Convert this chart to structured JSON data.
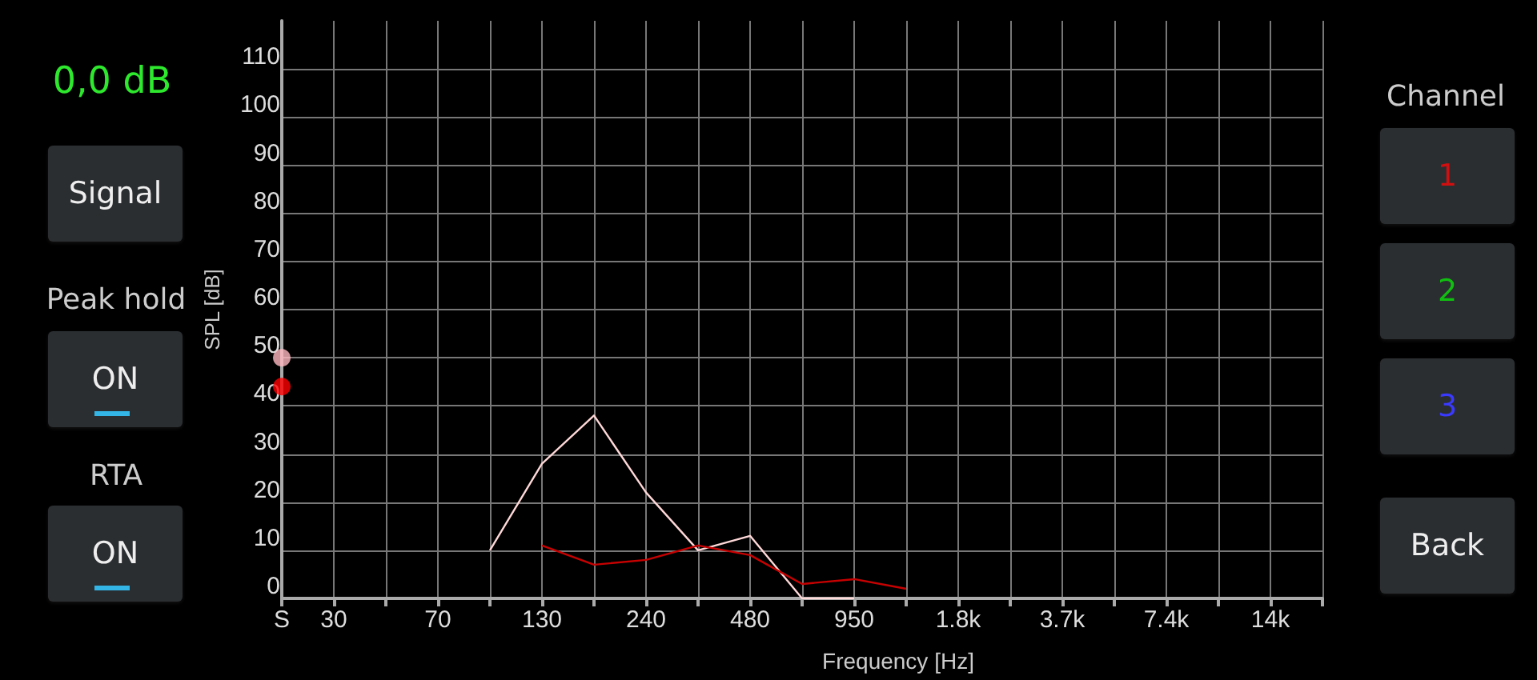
{
  "chart_data": {
    "type": "line",
    "xlabel": "Frequency [Hz]",
    "ylabel": "SPL [dB]",
    "categories": [
      "S",
      "30",
      null,
      "70",
      null,
      "130",
      null,
      "240",
      null,
      "480",
      null,
      "950",
      null,
      "1.8k",
      null,
      "3.7k",
      null,
      "7.4k",
      null,
      "14k",
      null
    ],
    "series": [
      {
        "color": "#ffd8d8",
        "values": [
          null,
          null,
          null,
          null,
          10,
          28,
          38,
          22,
          10,
          13,
          0,
          0,
          null,
          null,
          null,
          null,
          null,
          null,
          null,
          null,
          null
        ]
      },
      {
        "color": "#c80000",
        "values": [
          null,
          null,
          null,
          null,
          null,
          11,
          7,
          8,
          11,
          9,
          3,
          4,
          2,
          null,
          null,
          null,
          null,
          null,
          null,
          null,
          null
        ]
      },
      {
        "type": "scatter",
        "color": "#ffb8c0",
        "x": [
          "S"
        ],
        "values": [
          50
        ]
      },
      {
        "type": "scatter",
        "color": "#ff0000",
        "x": [
          "S"
        ],
        "values": [
          44
        ]
      }
    ],
    "ylim": [
      0,
      120
    ],
    "yticks": [
      0,
      10,
      20,
      30,
      40,
      50,
      60,
      70,
      80,
      90,
      100,
      110
    ],
    "grid": true,
    "line_style": "solid",
    "annotations": [
      "0,0 dB",
      "Signal",
      "Peak hold",
      "ON",
      "RTA",
      "ON",
      "Channel",
      "1",
      "2",
      "3",
      "Back"
    ]
  }
}
